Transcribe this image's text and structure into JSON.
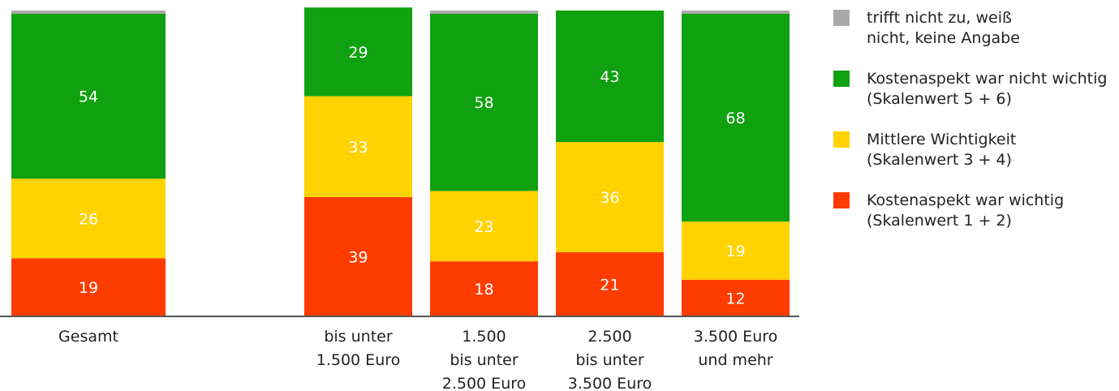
{
  "chart_data": {
    "type": "stacked_bar",
    "categories": [
      "Gesamt",
      "bis unter\n1.500 Euro",
      "1.500\nbis unter\n2.500 Euro",
      "2.500\nbis unter\n3.500 Euro",
      "3.500 Euro\nund mehr"
    ],
    "series": [
      {
        "name": "Kostenaspekt war wichtig\n(Skalenwert 1 + 2)",
        "color": "#ff3c00",
        "values": [
          19,
          39,
          18,
          21,
          12
        ]
      },
      {
        "name": "Mittlere Wichtigkeit\n(Skalenwert 3 + 4)",
        "color": "#ffd200",
        "values": [
          26,
          33,
          23,
          36,
          19
        ]
      },
      {
        "name": "Kostenaspekt war nicht wichtig\n(Skalenwert 5 + 6)",
        "color": "#0fa10f",
        "values": [
          54,
          29,
          58,
          43,
          68
        ]
      },
      {
        "name": "trifft nicht zu, weiß\nnicht, keine Angabe",
        "color": "#a9a9a9",
        "values": [
          1,
          0,
          1,
          0,
          1
        ]
      }
    ],
    "ylim": [
      0,
      100
    ]
  }
}
